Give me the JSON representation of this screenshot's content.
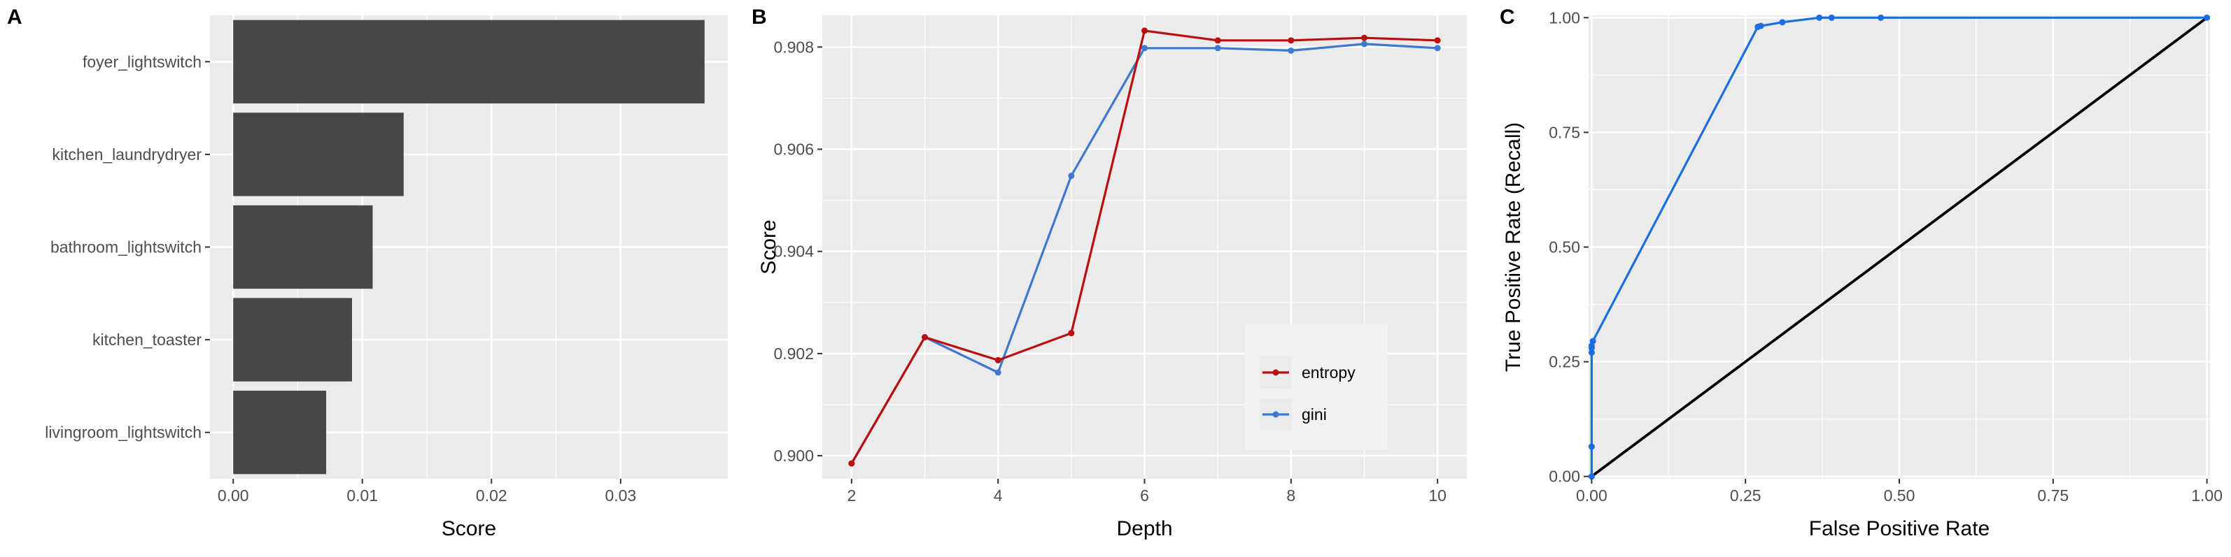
{
  "panels": {
    "a": "A",
    "b": "B",
    "c": "C"
  },
  "chart_data": [
    {
      "type": "bar",
      "orientation": "horizontal",
      "categories": [
        "foyer_lightswitch",
        "kitchen_laundrydryer",
        "bathroom_lightswitch",
        "kitchen_toaster",
        "livingroom_lightswitch"
      ],
      "values": [
        0.0365,
        0.0132,
        0.0108,
        0.0092,
        0.0072
      ],
      "xlabel": "Score",
      "ylabel": "",
      "xlim": [
        -0.0018,
        0.0383
      ],
      "xticks": [
        0,
        0.01,
        0.02,
        0.03
      ],
      "xtick_labels": [
        "0.00",
        "0.01",
        "0.02",
        "0.03"
      ],
      "grid": true,
      "colors": {
        "bar": "#474747",
        "panel": "#ebebeb",
        "grid": "#ffffff"
      }
    },
    {
      "type": "line",
      "x": [
        2,
        3,
        4,
        5,
        6,
        7,
        8,
        9,
        10
      ],
      "series": [
        {
          "name": "entropy",
          "color": "#bb0f0f",
          "values": [
            0.89985,
            0.90232,
            0.90187,
            0.9024,
            0.90832,
            0.90813,
            0.90813,
            0.90818,
            0.90813
          ]
        },
        {
          "name": "gini",
          "color": "#3e78cf",
          "values": [
            0.89985,
            0.90232,
            0.90163,
            0.90548,
            0.90798,
            0.90798,
            0.90793,
            0.90806,
            0.90798
          ]
        }
      ],
      "xlabel": "Depth",
      "ylabel": "Score",
      "xlim": [
        1.6,
        10.4
      ],
      "ylim": [
        0.89955,
        0.90862
      ],
      "xticks": [
        2,
        4,
        6,
        8,
        10
      ],
      "xtick_labels": [
        "2",
        "4",
        "6",
        "8",
        "10"
      ],
      "yticks": [
        0.9,
        0.902,
        0.904,
        0.906,
        0.908
      ],
      "ytick_labels": [
        "0.900",
        "0.902",
        "0.904",
        "0.906",
        "0.908"
      ],
      "legend": "bottom-right",
      "grid": true
    },
    {
      "type": "line",
      "series": [
        {
          "name": "",
          "color": "#1a6ee0",
          "x": [
            0,
            0.0,
            0.0,
            0.0,
            0.0,
            0.002,
            0.27,
            0.275,
            0.31,
            0.37,
            0.39,
            0.47,
            1.0
          ],
          "y": [
            0,
            0.065,
            0.27,
            0.28,
            0.285,
            0.295,
            0.98,
            0.982,
            0.99,
            1.0,
            1.0,
            1.0,
            1.0
          ]
        },
        {
          "name": "",
          "color": "#000000",
          "x": [
            0,
            1
          ],
          "y": [
            0,
            1
          ]
        }
      ],
      "xlabel": "False Positive Rate",
      "ylabel": "True Positive Rate (Recall)",
      "xlim": [
        -0.005,
        1.005
      ],
      "ylim": [
        -0.005,
        1.005
      ],
      "xticks": [
        0,
        0.25,
        0.5,
        0.75,
        1
      ],
      "xtick_labels": [
        "0.00",
        "0.25",
        "0.50",
        "0.75",
        "1.00"
      ],
      "yticks": [
        0,
        0.25,
        0.5,
        0.75,
        1
      ],
      "ytick_labels": [
        "0.00",
        "0.25",
        "0.50",
        "0.75",
        "1.00"
      ],
      "grid": true
    }
  ]
}
